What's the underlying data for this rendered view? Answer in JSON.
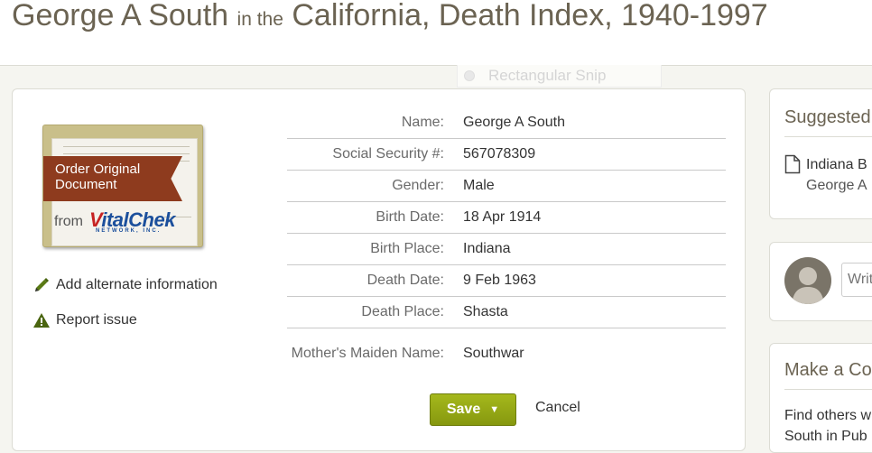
{
  "header": {
    "name": "George A South",
    "connector": "in the",
    "collection": "California, Death Index, 1940-1997"
  },
  "snip_overlay": {
    "label": "Rectangular Snip"
  },
  "order_document": {
    "line1": "Order Original",
    "line2": "Document",
    "from": "from",
    "brand_v": "V",
    "brand_rest": "italChek",
    "network": "NETWORK, INC."
  },
  "actions": {
    "add_alternate": "Add alternate information",
    "report_issue": "Report issue",
    "save": "Save",
    "cancel": "Cancel"
  },
  "record": {
    "rows": [
      {
        "label": "Name:",
        "value": "George A South"
      },
      {
        "label": "Social Security #:",
        "value": "567078309"
      },
      {
        "label": "Gender:",
        "value": "Male"
      },
      {
        "label": "Birth Date:",
        "value": "18 Apr 1914"
      },
      {
        "label": "Birth Place:",
        "value": "Indiana"
      },
      {
        "label": "Death Date:",
        "value": "9 Feb 1963"
      },
      {
        "label": "Death Place:",
        "value": "Shasta"
      },
      {
        "label": "Mother's Maiden Name:",
        "value": "Southwar"
      }
    ]
  },
  "suggested": {
    "title": "Suggested",
    "item_line1": "Indiana B",
    "item_line2": "George A"
  },
  "comment": {
    "placeholder": "Writ"
  },
  "connect": {
    "title": "Make a Co",
    "line1": "Find others w",
    "line2": "South in Pub"
  },
  "colors": {
    "accent_green": "#9aad14",
    "ribbon": "#8e3b1e",
    "heading": "#6b6352"
  }
}
